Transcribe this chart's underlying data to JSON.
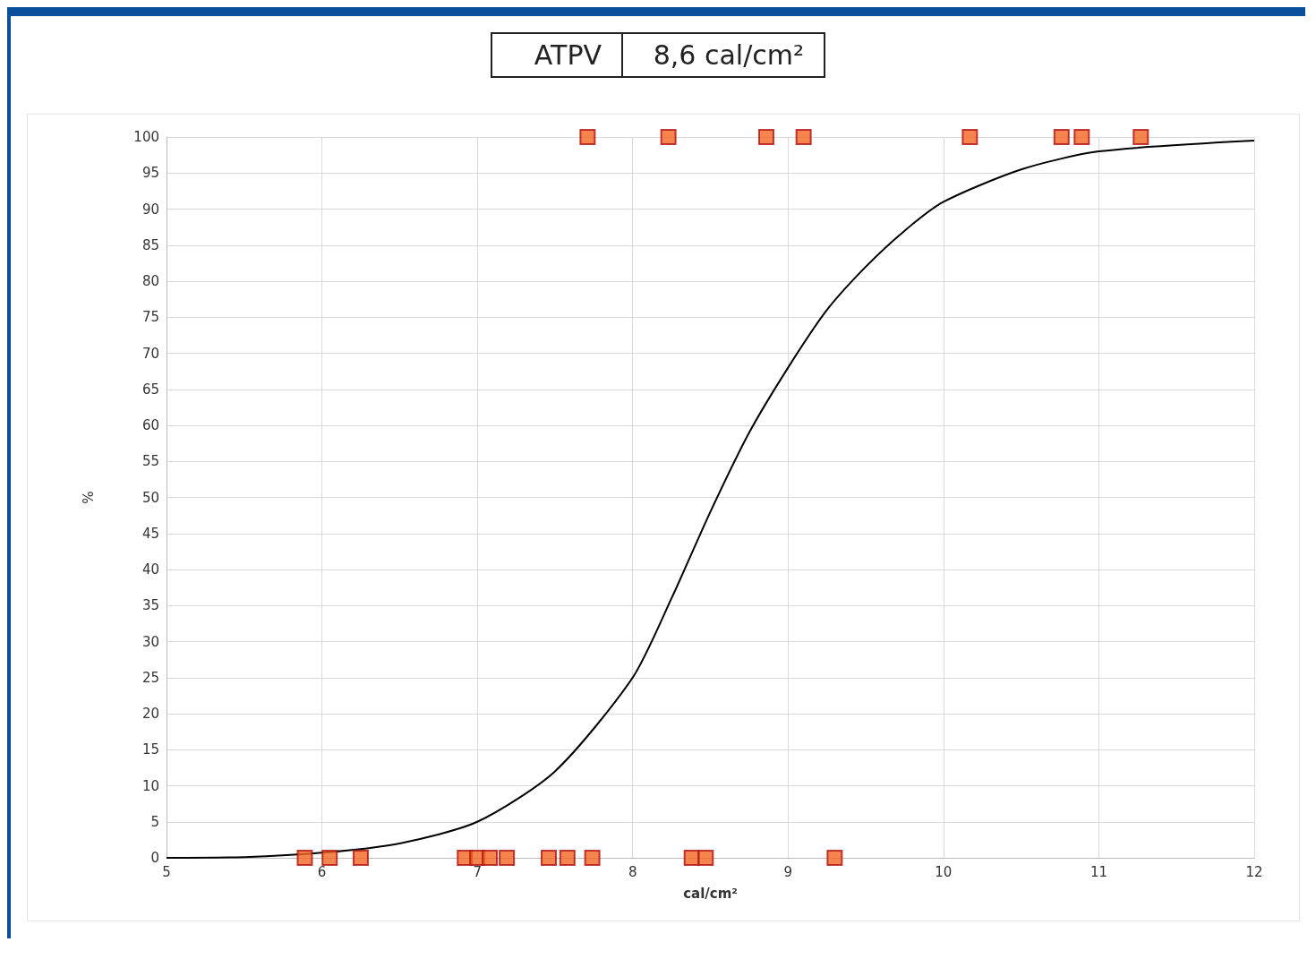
{
  "chart_data": {
    "type": "scatter",
    "title": "ATPV",
    "subtitle": "8,6 cal/cm²",
    "xlabel": "cal/cm²",
    "ylabel": "%",
    "xlim": [
      5,
      12
    ],
    "xticks": [
      5,
      6,
      7,
      8,
      9,
      10,
      11,
      12
    ],
    "ylim": [
      0,
      100
    ],
    "yticks": [
      0,
      5,
      10,
      15,
      20,
      25,
      30,
      35,
      40,
      45,
      50,
      55,
      60,
      65,
      70,
      75,
      80,
      85,
      90,
      95,
      100
    ],
    "grid": true,
    "series": [
      {
        "marker": "square",
        "color": "#f26522",
        "x": [
          5.89,
          6.05,
          6.25,
          6.92,
          7.0,
          7.08,
          7.19,
          7.46,
          7.58,
          7.74,
          8.38,
          8.47,
          9.3,
          7.71,
          8.23,
          8.86,
          9.1,
          10.17,
          10.76,
          10.89,
          11.27
        ],
        "values": [
          0,
          0,
          0,
          0,
          0,
          0,
          0,
          0,
          0,
          0,
          0,
          0,
          0,
          100,
          100,
          100,
          100,
          100,
          100,
          100,
          100
        ]
      },
      {
        "type": "line",
        "marker": "none",
        "color": "#000000",
        "x": [
          5,
          5.5,
          6,
          6.5,
          7,
          7.5,
          8,
          8.25,
          8.5,
          8.75,
          9,
          9.25,
          9.5,
          9.75,
          10,
          10.5,
          11,
          12
        ],
        "values": [
          0,
          0.1,
          0.7,
          2,
          5,
          12,
          25,
          36,
          48,
          59,
          68,
          76,
          82,
          87,
          91,
          95.5,
          98,
          99.5
        ]
      }
    ]
  }
}
